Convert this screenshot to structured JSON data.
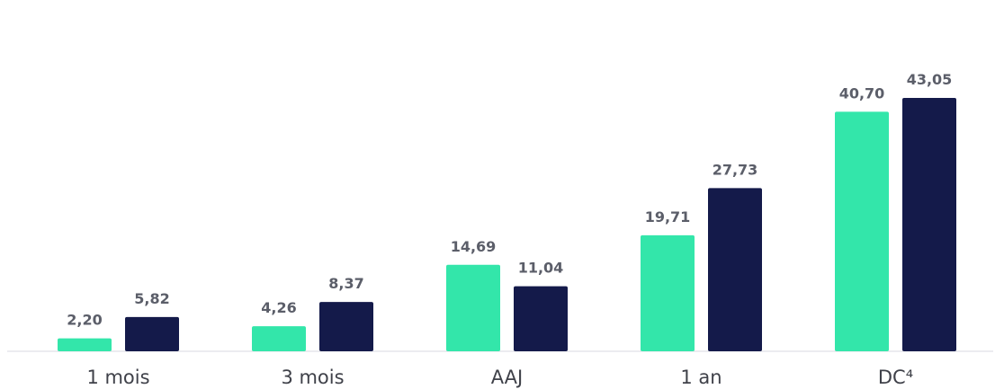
{
  "chart_data": {
    "type": "bar",
    "categories": [
      "1 mois",
      "3 mois",
      "AAJ",
      "1 an",
      "DC⁴"
    ],
    "series": [
      {
        "values": [
          2.2,
          4.26,
          14.69,
          19.71,
          40.7
        ],
        "labels": [
          "2,20",
          "4,26",
          "14,69",
          "19,71",
          "40,70"
        ],
        "color": "#33e6aa"
      },
      {
        "values": [
          5.82,
          8.37,
          11.04,
          27.73,
          43.05
        ],
        "labels": [
          "5,82",
          "8,37",
          "11,04",
          "27,73",
          "43,05"
        ],
        "color": "#141a4a"
      }
    ],
    "ylim": [
      0,
      43.05
    ],
    "grid": false
  }
}
